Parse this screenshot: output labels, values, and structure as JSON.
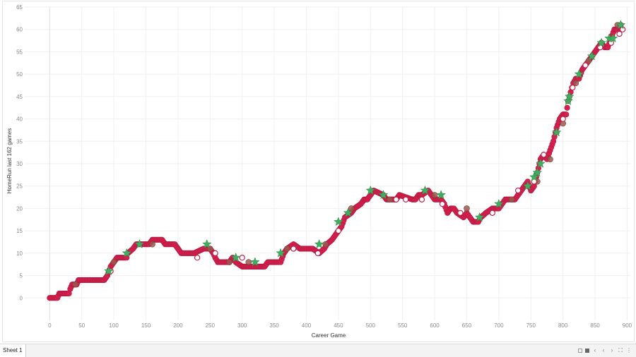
{
  "chart_data": {
    "type": "scatter",
    "title": "",
    "xlabel": "Career Game",
    "ylabel": "HomeRun last 162 games",
    "xlim": [
      -40,
      905
    ],
    "ylim": [
      -5,
      65
    ],
    "xticks": [
      0,
      50,
      100,
      150,
      200,
      250,
      300,
      350,
      400,
      450,
      500,
      550,
      600,
      650,
      700,
      750,
      800,
      850,
      900
    ],
    "yticks": [
      0,
      5,
      10,
      15,
      20,
      25,
      30,
      35,
      40,
      45,
      50,
      55,
      60,
      65
    ],
    "grid": true,
    "colors": {
      "main": "#d6204d",
      "main_stroke": "#b01840",
      "star": "#3fae5f",
      "hollow": "#c0204a",
      "brown": "#9a5a4f"
    },
    "series": [
      {
        "points": [
          [
            0,
            0
          ],
          [
            12,
            0
          ],
          [
            15,
            1
          ],
          [
            30,
            1
          ],
          [
            32,
            2
          ],
          [
            35,
            3
          ],
          [
            42,
            3
          ],
          [
            45,
            4
          ],
          [
            60,
            4
          ],
          [
            70,
            4
          ],
          [
            85,
            4
          ],
          [
            90,
            5
          ],
          [
            95,
            7
          ],
          [
            100,
            8
          ],
          [
            105,
            9
          ],
          [
            120,
            9
          ],
          [
            122,
            10
          ],
          [
            130,
            11
          ],
          [
            135,
            12
          ],
          [
            150,
            12
          ],
          [
            155,
            12
          ],
          [
            160,
            13
          ],
          [
            175,
            13
          ],
          [
            180,
            12
          ],
          [
            195,
            12
          ],
          [
            200,
            11
          ],
          [
            205,
            10
          ],
          [
            225,
            10
          ],
          [
            240,
            11
          ],
          [
            250,
            11
          ],
          [
            255,
            10
          ],
          [
            258,
            9
          ],
          [
            262,
            8
          ],
          [
            280,
            8
          ],
          [
            285,
            9
          ],
          [
            290,
            8
          ],
          [
            300,
            7
          ],
          [
            335,
            7
          ],
          [
            340,
            8
          ],
          [
            360,
            8
          ],
          [
            365,
            10
          ],
          [
            370,
            11
          ],
          [
            380,
            12
          ],
          [
            390,
            11
          ],
          [
            410,
            11
          ],
          [
            420,
            10
          ],
          [
            428,
            11
          ],
          [
            432,
            12
          ],
          [
            440,
            13
          ],
          [
            445,
            14
          ],
          [
            450,
            15
          ],
          [
            455,
            16
          ],
          [
            460,
            18
          ],
          [
            470,
            19
          ],
          [
            475,
            20
          ],
          [
            485,
            21
          ],
          [
            490,
            22
          ],
          [
            495,
            22
          ],
          [
            500,
            23
          ],
          [
            505,
            24
          ],
          [
            520,
            23
          ],
          [
            525,
            22
          ],
          [
            540,
            22
          ],
          [
            545,
            23
          ],
          [
            565,
            22
          ],
          [
            570,
            22
          ],
          [
            575,
            23
          ],
          [
            580,
            23
          ],
          [
            590,
            24
          ],
          [
            600,
            22
          ],
          [
            610,
            22
          ],
          [
            615,
            21
          ],
          [
            620,
            19
          ],
          [
            625,
            20
          ],
          [
            630,
            20
          ],
          [
            635,
            19
          ],
          [
            645,
            18
          ],
          [
            650,
            19
          ],
          [
            660,
            17
          ],
          [
            668,
            17
          ],
          [
            672,
            18
          ],
          [
            680,
            19
          ],
          [
            690,
            20
          ],
          [
            700,
            20
          ],
          [
            710,
            22
          ],
          [
            725,
            22
          ],
          [
            730,
            23
          ],
          [
            735,
            24
          ],
          [
            740,
            25
          ],
          [
            745,
            26
          ],
          [
            750,
            24
          ],
          [
            755,
            25
          ],
          [
            760,
            28
          ],
          [
            765,
            31
          ],
          [
            770,
            32
          ],
          [
            775,
            31
          ],
          [
            780,
            33
          ],
          [
            785,
            35
          ],
          [
            790,
            38
          ],
          [
            795,
            40
          ],
          [
            800,
            41
          ],
          [
            805,
            41
          ],
          [
            808,
            44
          ],
          [
            812,
            46
          ],
          [
            816,
            48
          ],
          [
            820,
            49
          ],
          [
            825,
            49
          ],
          [
            830,
            51
          ],
          [
            835,
            52
          ],
          [
            840,
            53
          ],
          [
            845,
            54
          ],
          [
            850,
            55
          ],
          [
            855,
            56
          ],
          [
            860,
            57
          ],
          [
            865,
            56
          ],
          [
            870,
            56
          ],
          [
            875,
            58
          ],
          [
            880,
            60
          ],
          [
            885,
            60
          ],
          [
            890,
            61
          ]
        ]
      }
    ],
    "stars": [
      [
        92,
        6
      ],
      [
        120,
        10
      ],
      [
        140,
        12
      ],
      [
        245,
        12
      ],
      [
        290,
        9
      ],
      [
        320,
        8
      ],
      [
        360,
        10
      ],
      [
        420,
        12
      ],
      [
        450,
        17
      ],
      [
        465,
        19
      ],
      [
        500,
        24
      ],
      [
        520,
        23
      ],
      [
        585,
        24
      ],
      [
        610,
        23
      ],
      [
        670,
        18
      ],
      [
        700,
        21
      ],
      [
        745,
        25
      ],
      [
        755,
        27
      ],
      [
        760,
        28
      ],
      [
        765,
        30
      ],
      [
        790,
        37
      ],
      [
        808,
        44
      ],
      [
        810,
        45
      ],
      [
        825,
        50
      ],
      [
        845,
        54
      ],
      [
        860,
        57
      ],
      [
        872,
        58
      ],
      [
        878,
        58
      ],
      [
        890,
        61
      ]
    ],
    "hollow": [
      [
        95,
        6
      ],
      [
        230,
        9
      ],
      [
        258,
        10
      ],
      [
        300,
        9
      ],
      [
        380,
        11
      ],
      [
        418,
        10
      ],
      [
        450,
        15
      ],
      [
        540,
        22
      ],
      [
        555,
        22
      ],
      [
        580,
        22
      ],
      [
        612,
        21
      ],
      [
        640,
        19
      ],
      [
        690,
        19
      ],
      [
        730,
        24
      ],
      [
        755,
        26
      ],
      [
        770,
        32
      ],
      [
        790,
        37
      ],
      [
        800,
        40
      ],
      [
        815,
        47
      ],
      [
        835,
        52
      ],
      [
        858,
        56
      ],
      [
        875,
        57
      ],
      [
        888,
        59
      ],
      [
        893,
        60
      ]
    ],
    "brown": [
      [
        40,
        3
      ],
      [
        100,
        8
      ],
      [
        160,
        12
      ],
      [
        250,
        11
      ],
      [
        280,
        8
      ],
      [
        310,
        8
      ],
      [
        370,
        11
      ],
      [
        430,
        12
      ],
      [
        470,
        20
      ],
      [
        530,
        22
      ],
      [
        600,
        23
      ],
      [
        650,
        20
      ],
      [
        720,
        22
      ],
      [
        760,
        26
      ],
      [
        780,
        31
      ],
      [
        800,
        39
      ],
      [
        820,
        48
      ],
      [
        840,
        53
      ],
      [
        860,
        57
      ],
      [
        885,
        61
      ]
    ]
  },
  "sheet_tab": {
    "label": "Sheet 1"
  }
}
